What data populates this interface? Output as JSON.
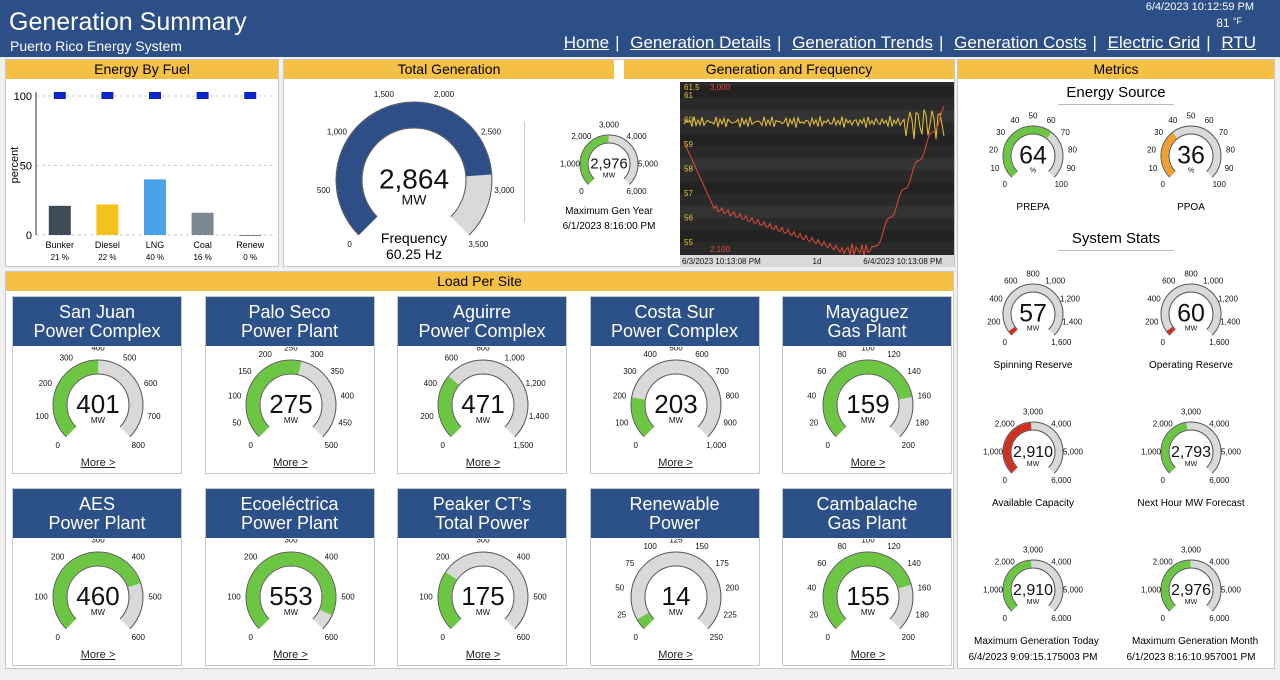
{
  "header": {
    "title": "Generation Summary",
    "subtitle": "Puerto Rico Energy System",
    "datetime": "6/4/2023 10:12:59 PM",
    "temperature": "81",
    "temp_unit": "°F",
    "nav": [
      "Home",
      "Generation Details",
      "Generation Trends",
      "Generation Costs",
      "Electric Grid",
      "RTU"
    ]
  },
  "energy_by_fuel": {
    "title": "Energy By Fuel",
    "ylabel": "percent",
    "yticks": [
      "100",
      "50",
      "0"
    ]
  },
  "total_generation": {
    "title": "Total Generation",
    "unit": "MW",
    "freq_label": "Frequency",
    "freq_value": "60.25 Hz",
    "max_label": "Maximum Gen Year",
    "max_date": "6/1/2023 8:16:00 PM"
  },
  "trend": {
    "title": "Generation and Frequency",
    "legend_freq": "61.5",
    "legend_gen": "3,000",
    "legend_low": "2,100",
    "x_left": "6/3/2023 10:13:08 PM",
    "x_mid": "1d",
    "x_right": "6/4/2023 10:13:08 PM",
    "yticks": [
      "61",
      "60",
      "59",
      "58",
      "57",
      "56",
      "55"
    ]
  },
  "metrics": {
    "title": "Metrics",
    "energy_source": "Energy Source",
    "system_stats": "System Stats"
  },
  "load_title": "Load Per Site",
  "more_label": "More >",
  "gauges": [
    {
      "id": "total",
      "value": 2864,
      "display": "2,864",
      "unit": "MW",
      "min": 0,
      "max": 3500,
      "ticks": [
        "0",
        "500",
        "1,000",
        "1,500",
        "2,000",
        "2,500",
        "3,000",
        "3,500"
      ],
      "color": "#2d4e87"
    },
    {
      "id": "maxgenyear",
      "value": 2976,
      "display": "2,976",
      "unit": "MW",
      "min": 0,
      "max": 6000,
      "ticks": [
        "0",
        "1,000",
        "2,000",
        "3,000",
        "4,000",
        "5,000",
        "6,000"
      ],
      "color": "#6cc644"
    },
    {
      "id": "prepa",
      "value": 64,
      "display": "64",
      "unit": "%",
      "min": 0,
      "max": 100,
      "ticks": [
        "0",
        "10",
        "20",
        "30",
        "40",
        "50",
        "60",
        "70",
        "80",
        "90",
        "100"
      ],
      "color": "#6cc644",
      "label": "PREPA"
    },
    {
      "id": "ppoa",
      "value": 36,
      "display": "36",
      "unit": "%",
      "min": 0,
      "max": 100,
      "ticks": [
        "0",
        "10",
        "20",
        "30",
        "40",
        "50",
        "60",
        "70",
        "80",
        "90",
        "100"
      ],
      "color": "#f0a030",
      "label": "PPOA"
    },
    {
      "id": "spin",
      "value": 57,
      "display": "57",
      "unit": "MW",
      "min": 0,
      "max": 1600,
      "ticks": [
        "0",
        "200",
        "400",
        "600",
        "800",
        "1,000",
        "1,200",
        "1,400",
        "1,600"
      ],
      "color": "#d03020",
      "label": "Spinning Reserve"
    },
    {
      "id": "oper",
      "value": 60,
      "display": "60",
      "unit": "MW",
      "min": 0,
      "max": 1600,
      "ticks": [
        "0",
        "200",
        "400",
        "600",
        "800",
        "1,000",
        "1,200",
        "1,400",
        "1,600"
      ],
      "color": "#d03020",
      "label": "Operating Reserve"
    },
    {
      "id": "avail",
      "value": 2910,
      "display": "2,910",
      "unit": "MW",
      "min": 0,
      "max": 6000,
      "ticks": [
        "0",
        "1,000",
        "2,000",
        "3,000",
        "4,000",
        "5,000",
        "6,000"
      ],
      "color": "#d03020",
      "label": "Available Capacity"
    },
    {
      "id": "nexthour",
      "value": 2793,
      "display": "2,793",
      "unit": "MW",
      "min": 0,
      "max": 6000,
      "ticks": [
        "0",
        "1,000",
        "2,000",
        "3,000",
        "4,000",
        "5,000",
        "6,000"
      ],
      "color": "#6cc644",
      "label": "Next Hour MW Forecast"
    },
    {
      "id": "maxtoday",
      "value": 2910,
      "display": "2,910",
      "unit": "MW",
      "min": 0,
      "max": 6000,
      "ticks": [
        "0",
        "1,000",
        "2,000",
        "3,000",
        "4,000",
        "5,000",
        "6,000"
      ],
      "color": "#6cc644",
      "label": "Maximum Generation Today",
      "sub": "6/4/2023 9:09:15.175003 PM"
    },
    {
      "id": "maxmonth",
      "value": 2976,
      "display": "2,976",
      "unit": "MW",
      "min": 0,
      "max": 6000,
      "ticks": [
        "0",
        "1,000",
        "2,000",
        "3,000",
        "4,000",
        "5,000",
        "6,000"
      ],
      "color": "#6cc644",
      "label": "Maximum Generation Month",
      "sub": "6/1/2023 8:16:10.957001 PM"
    }
  ],
  "sites": [
    {
      "name1": "San Juan",
      "name2": "Power Complex",
      "value": 401,
      "display": "401",
      "max": 800,
      "ticks": [
        "0",
        "100",
        "200",
        "300",
        "400",
        "500",
        "600",
        "700",
        "800"
      ]
    },
    {
      "name1": "Palo Seco",
      "name2": "Power Plant",
      "value": 275,
      "display": "275",
      "max": 500,
      "ticks": [
        "0",
        "50",
        "100",
        "150",
        "200",
        "250",
        "300",
        "350",
        "400",
        "450",
        "500"
      ]
    },
    {
      "name1": "Aguirre",
      "name2": "Power Complex",
      "value": 471,
      "display": "471",
      "max": 1500,
      "ticks": [
        "0",
        "200",
        "400",
        "600",
        "800",
        "1,000",
        "1,200",
        "1,400",
        "1,500"
      ]
    },
    {
      "name1": "Costa Sur",
      "name2": "Power Complex",
      "value": 203,
      "display": "203",
      "max": 1000,
      "ticks": [
        "0",
        "100",
        "200",
        "300",
        "400",
        "500",
        "600",
        "700",
        "800",
        "900",
        "1,000"
      ]
    },
    {
      "name1": "Mayaguez",
      "name2": "Gas Plant",
      "value": 159,
      "display": "159",
      "max": 200,
      "ticks": [
        "0",
        "20",
        "40",
        "60",
        "80",
        "100",
        "120",
        "140",
        "160",
        "180",
        "200"
      ]
    },
    {
      "name1": "AES",
      "name2": "Power Plant",
      "value": 460,
      "display": "460",
      "max": 600,
      "ticks": [
        "0",
        "100",
        "200",
        "300",
        "400",
        "500",
        "600"
      ]
    },
    {
      "name1": "Ecoeléctrica",
      "name2": "Power Plant",
      "value": 553,
      "display": "553",
      "max": 600,
      "ticks": [
        "0",
        "100",
        "200",
        "300",
        "400",
        "500",
        "600"
      ]
    },
    {
      "name1": "Peaker CT's",
      "name2": "Total Power",
      "value": 175,
      "display": "175",
      "max": 600,
      "ticks": [
        "0",
        "100",
        "200",
        "300",
        "400",
        "500",
        "600"
      ]
    },
    {
      "name1": "Renewable",
      "name2": "Power",
      "value": 14,
      "display": "14",
      "max": 250,
      "ticks": [
        "0",
        "25",
        "50",
        "75",
        "100",
        "125",
        "150",
        "175",
        "200",
        "225",
        "250"
      ]
    },
    {
      "name1": "Cambalache",
      "name2": "Gas Plant",
      "value": 155,
      "display": "155",
      "max": 200,
      "ticks": [
        "0",
        "20",
        "40",
        "60",
        "80",
        "100",
        "120",
        "140",
        "160",
        "180",
        "200"
      ]
    }
  ],
  "chart_data": [
    {
      "type": "bar",
      "title": "Energy By Fuel",
      "ylabel": "percent",
      "ylim": [
        0,
        100
      ],
      "categories": [
        "Bunker",
        "Diesel",
        "LNG",
        "Coal",
        "Renew"
      ],
      "values": [
        21,
        22,
        40,
        16,
        0
      ],
      "value_labels": [
        "21",
        "22",
        "40",
        "16",
        "0"
      ],
      "value_unit": "%",
      "colors": [
        "#3e4a57",
        "#f5c21b",
        "#4aa3e8",
        "#7b8896",
        "#7b8896"
      ],
      "capacity_marker": [
        100,
        100,
        100,
        100,
        100
      ],
      "capacity_color": "#0a24c8",
      "grid": true
    },
    {
      "type": "line",
      "title": "Generation and Frequency",
      "x": [
        "6/3/2023 10:13:08 PM",
        "6/4/2023 10:13:08 PM"
      ],
      "series": [
        {
          "name": "Frequency",
          "color": "#e8c53a"
        },
        {
          "name": "Generation",
          "color": "#e14b3a"
        }
      ]
    }
  ]
}
